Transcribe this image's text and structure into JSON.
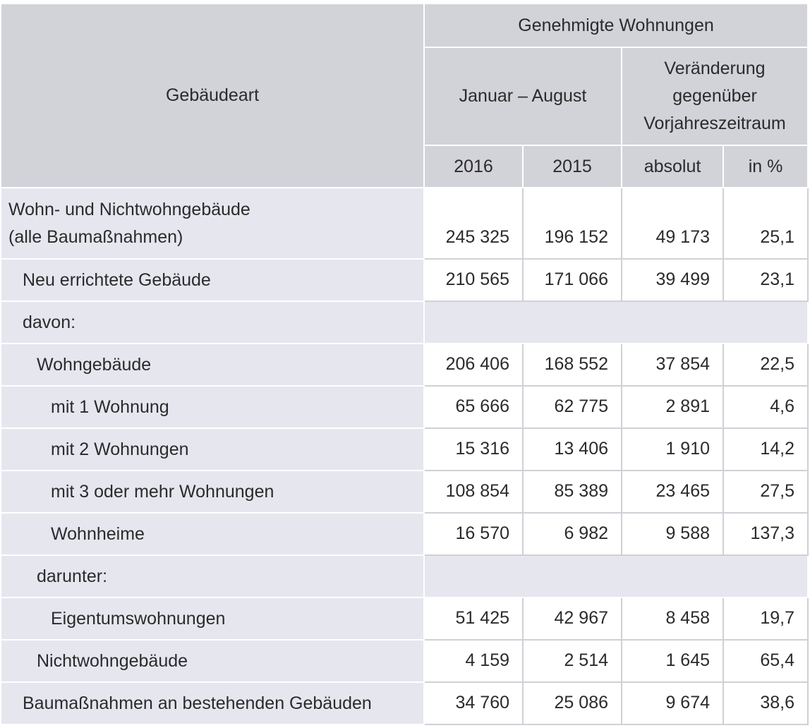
{
  "header": {
    "gebaeudeart": "Gebäudeart",
    "genehmigte": "Genehmigte Wohnungen",
    "zeitraum": "Januar – August",
    "veraenderung": "Veränderung gegenüber Vorjahreszeitraum",
    "veraenderung_lines": [
      "Veränderung",
      "gegenüber",
      "Vorjahreszeitraum"
    ],
    "y2016": "2016",
    "y2015": "2015",
    "absolut": "absolut",
    "in_pct": "in %"
  },
  "rows": [
    {
      "label_lines": [
        "Wohn- und Nichtwohngebäude",
        "(alle Baumaßnahmen)"
      ],
      "v2016": "245 325",
      "v2015": "196 152",
      "absolut": "49 173",
      "pct": "25,1"
    },
    {
      "label": "Neu errichtete Gebäude",
      "v2016": "210 565",
      "v2015": "171 066",
      "absolut": "39 499",
      "pct": "23,1"
    },
    {
      "label": "davon:"
    },
    {
      "label": "Wohngebäude",
      "v2016": "206 406",
      "v2015": "168 552",
      "absolut": "37 854",
      "pct": "22,5"
    },
    {
      "label": "mit 1 Wohnung",
      "v2016": "65 666",
      "v2015": "62 775",
      "absolut": "2 891",
      "pct": "4,6"
    },
    {
      "label": "mit 2 Wohnungen",
      "v2016": "15 316",
      "v2015": "13 406",
      "absolut": "1 910",
      "pct": "14,2"
    },
    {
      "label": "mit 3 oder mehr Wohnungen",
      "v2016": "108 854",
      "v2015": "85 389",
      "absolut": "23 465",
      "pct": "27,5"
    },
    {
      "label": "Wohnheime",
      "v2016": "16 570",
      "v2015": "6 982",
      "absolut": "9 588",
      "pct": "137,3"
    },
    {
      "label": "darunter:"
    },
    {
      "label": "Eigentumswohnungen",
      "v2016": "51 425",
      "v2015": "42 967",
      "absolut": "8 458",
      "pct": "19,7"
    },
    {
      "label": "Nichtwohngebäude",
      "v2016": "4 159",
      "v2015": "2 514",
      "absolut": "1 645",
      "pct": "65,4"
    },
    {
      "label": "Baumaßnahmen an bestehenden Gebäuden",
      "v2016": "34 760",
      "v2015": "25 086",
      "absolut": "9 674",
      "pct": "38,6"
    }
  ]
}
